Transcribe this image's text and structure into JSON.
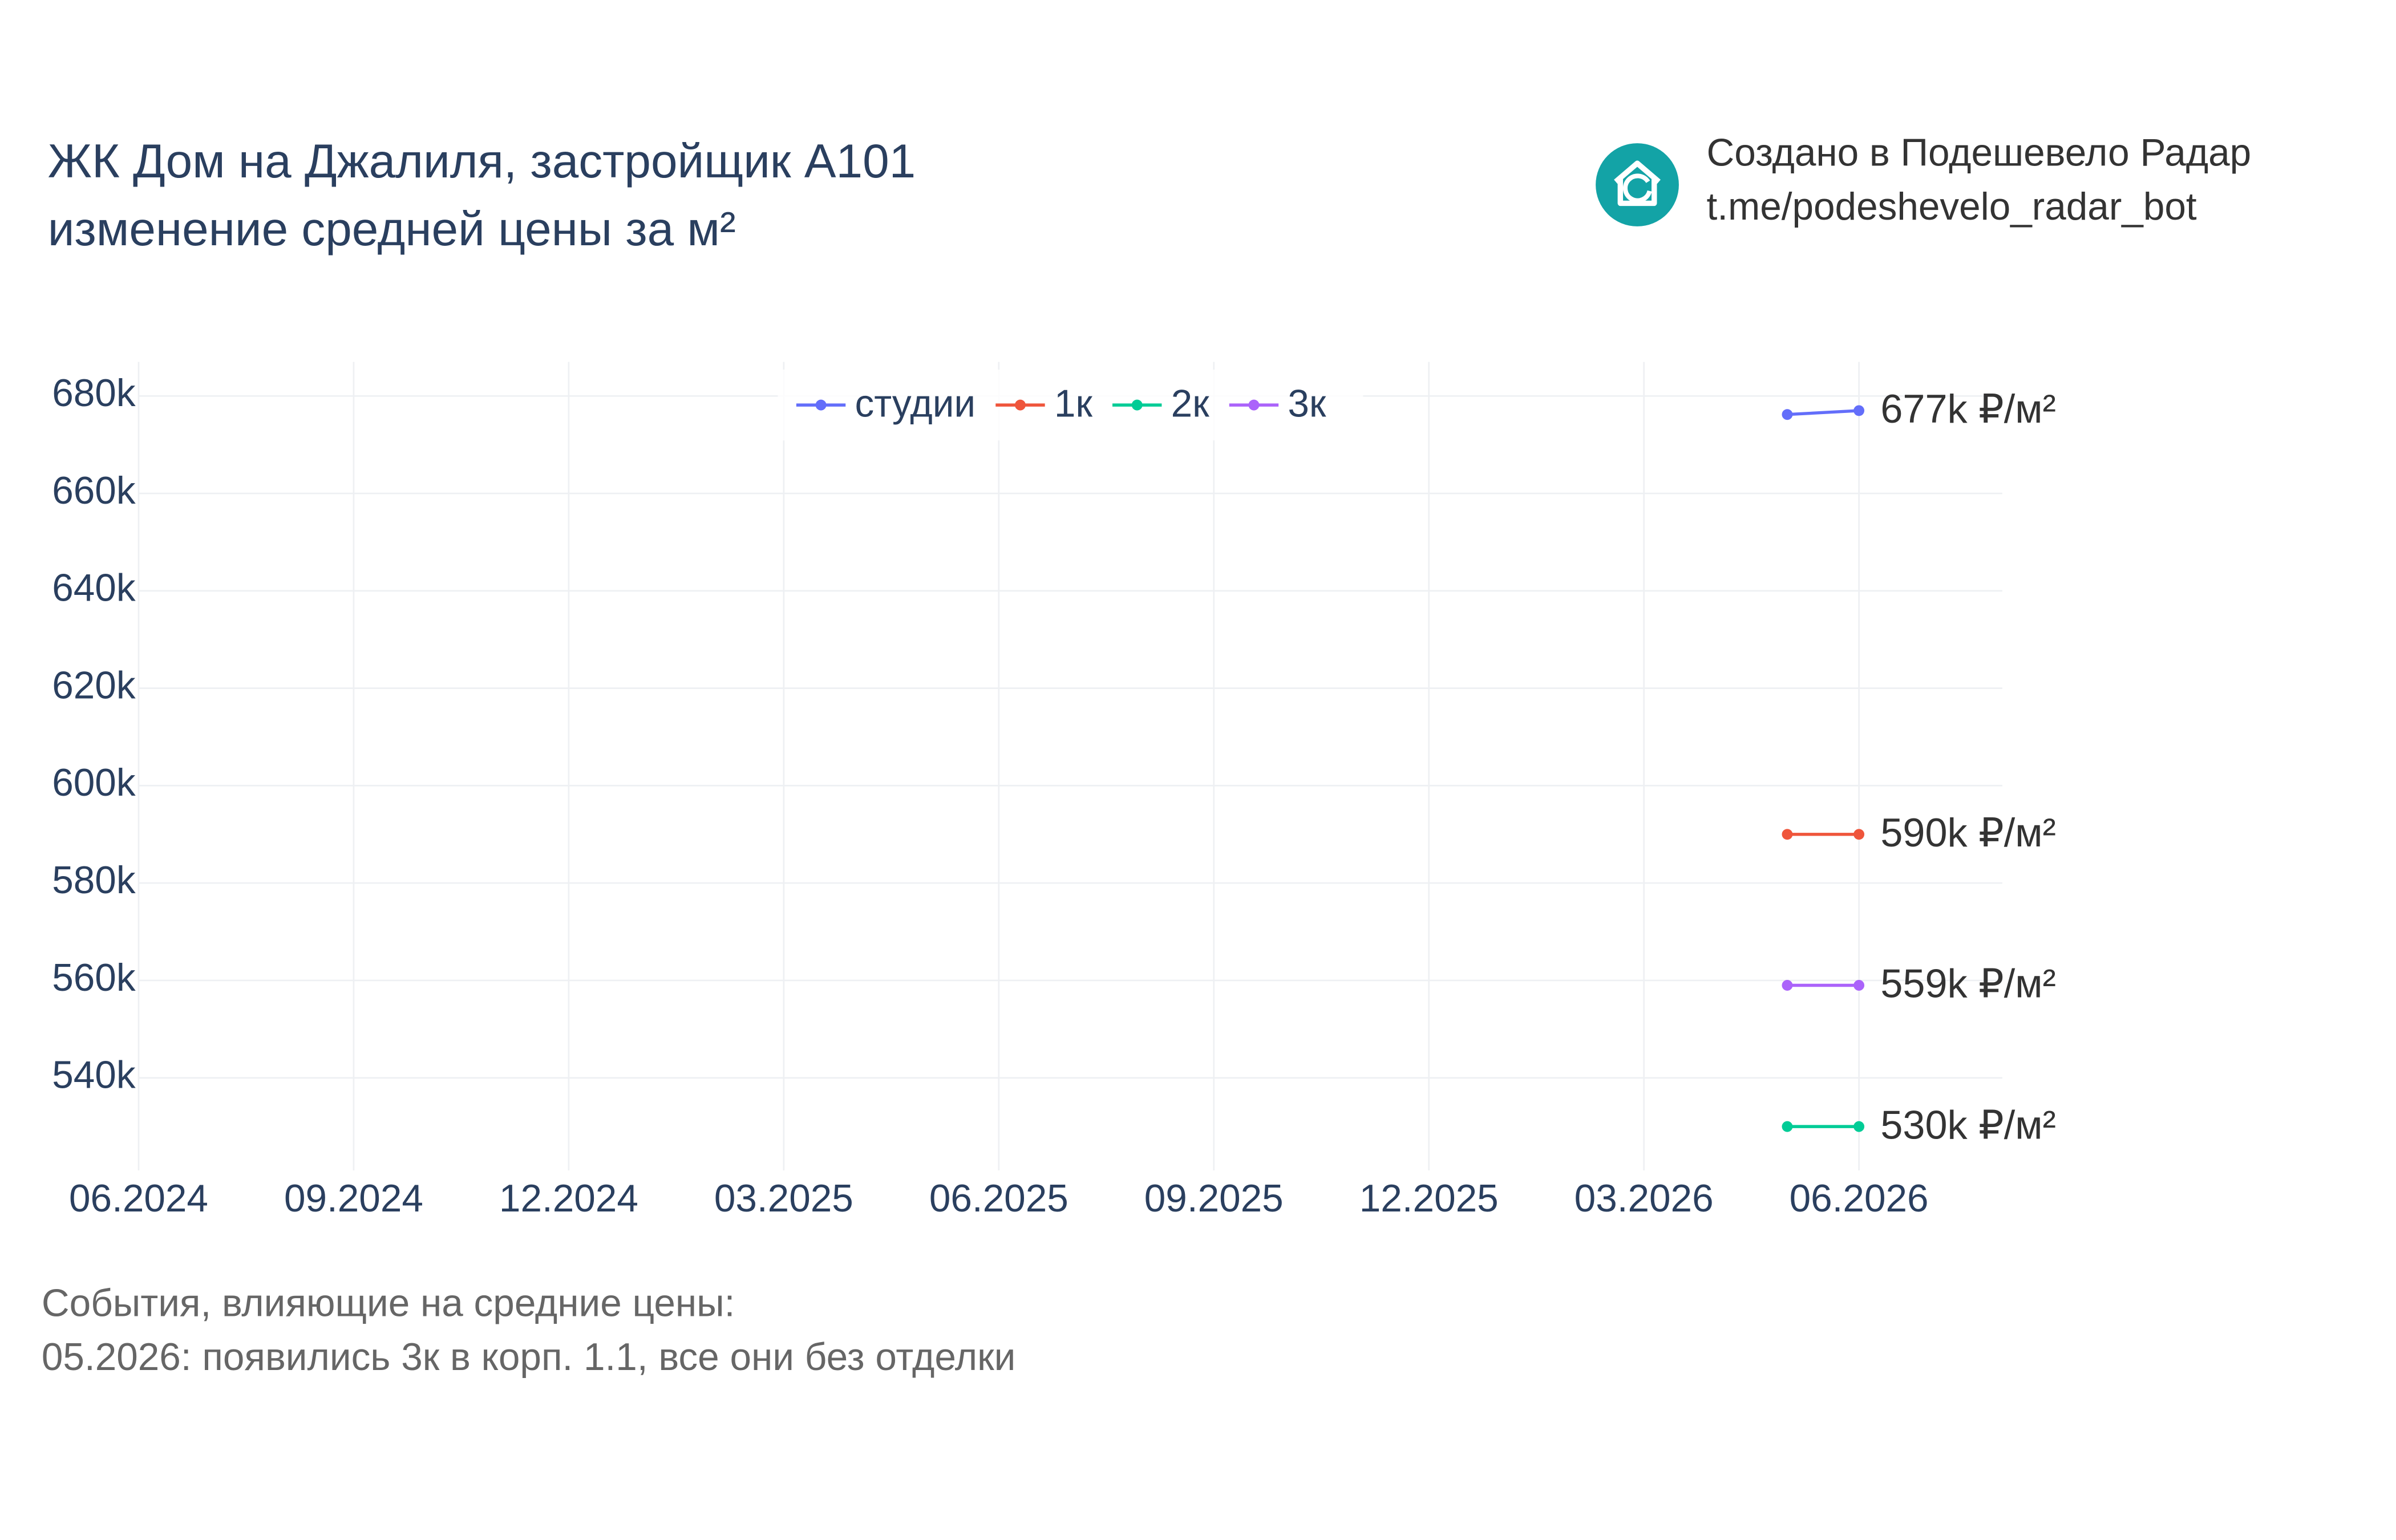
{
  "chart_data": {
    "type": "line",
    "title": "ЖК Дом на Джалиля, застройщик А101",
    "subtitle": "изменение средней цены за м²",
    "x": [
      "2026-05",
      "2026-06"
    ],
    "xlim": [
      "2024-06",
      "2026-08"
    ],
    "xticks": [
      {
        "value": "2024-06",
        "label": "06.2024"
      },
      {
        "value": "2024-09",
        "label": "09.2024"
      },
      {
        "value": "2024-12",
        "label": "12.2024"
      },
      {
        "value": "2025-03",
        "label": "03.2025"
      },
      {
        "value": "2025-06",
        "label": "06.2025"
      },
      {
        "value": "2025-09",
        "label": "09.2025"
      },
      {
        "value": "2025-12",
        "label": "12.2025"
      },
      {
        "value": "2026-03",
        "label": "03.2026"
      },
      {
        "value": "2026-06",
        "label": "06.2026"
      }
    ],
    "ylim": [
      521000,
      687000
    ],
    "yticks": [
      {
        "value": 540000,
        "label": "540k"
      },
      {
        "value": 560000,
        "label": "560k"
      },
      {
        "value": 580000,
        "label": "580k"
      },
      {
        "value": 600000,
        "label": "600k"
      },
      {
        "value": 620000,
        "label": "620k"
      },
      {
        "value": 640000,
        "label": "640k"
      },
      {
        "value": 660000,
        "label": "660k"
      },
      {
        "value": 680000,
        "label": "680k"
      }
    ],
    "grid": true,
    "legend": "top",
    "series": [
      {
        "name": "студии",
        "color": "#636efa",
        "values": [
          676200,
          677000
        ],
        "value_labels": [
          null,
          "677k ₽/м²"
        ]
      },
      {
        "name": "1к",
        "color": "#ef553b",
        "values": [
          590000,
          590000
        ],
        "value_labels": [
          null,
          "590k ₽/м²"
        ]
      },
      {
        "name": "2к",
        "color": "#00cc96",
        "values": [
          530000,
          530000
        ],
        "value_labels": [
          null,
          "530k ₽/м²"
        ]
      },
      {
        "name": "3к",
        "color": "#ab63fa",
        "values": [
          559000,
          559000
        ],
        "value_labels": [
          null,
          "559k ₽/м²"
        ]
      }
    ]
  },
  "credit": [
    "Создано в Подешевело Радар",
    "t.me/podeshevelo_radar_bot"
  ],
  "notes": [
    "События, влияющие на средние цены:",
    "05.2026: появились 3к в корп. 1.1, все они без отделки"
  ]
}
